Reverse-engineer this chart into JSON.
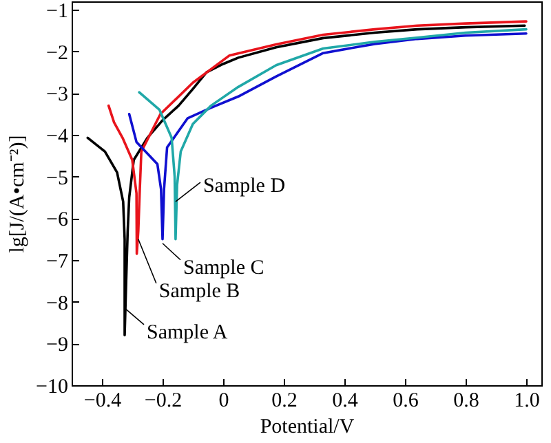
{
  "chart_data": {
    "type": "line",
    "xlabel": "Potential/V",
    "ylabel": "lg[J/(A•cm⁻²)]",
    "xlim": [
      -0.5,
      1.05
    ],
    "ylim": [
      -10,
      -0.8
    ],
    "xticks": [
      -0.4,
      -0.2,
      0,
      0.2,
      0.4,
      0.6,
      0.8,
      {
        "value": 1,
        "label": "1.0"
      }
    ],
    "yticks": [
      -10,
      -9,
      -8,
      -7,
      -6,
      -5,
      -4,
      -3,
      -2,
      -1
    ],
    "grid": false,
    "line_style": "solid",
    "marker": "none",
    "series": [
      {
        "color": "#000000",
        "x": [
          -0.447,
          -0.39,
          -0.35,
          -0.33,
          -0.325,
          -0.325,
          -0.32,
          -0.315,
          -0.31,
          -0.295,
          -0.25,
          -0.2,
          -0.147,
          -0.1,
          -0.055,
          0,
          0.05,
          0.175,
          0.33,
          0.5,
          0.64,
          0.8,
          0.995
        ],
        "values": [
          -4.07,
          -4.4,
          -4.9,
          -5.6,
          -6.5,
          -8.8,
          -7.5,
          -6.3,
          -5.5,
          -4.6,
          -4.07,
          -3.65,
          -3.3,
          -2.9,
          -2.5,
          -2.3,
          -2.15,
          -1.9,
          -1.68,
          -1.55,
          -1.47,
          -1.42,
          -1.38
        ]
      },
      {
        "color": "#e8141c",
        "x": [
          -0.378,
          -0.36,
          -0.332,
          -0.3,
          -0.286,
          -0.285,
          -0.28,
          -0.275,
          -0.27,
          -0.207,
          -0.1,
          0.02,
          0.175,
          0.33,
          0.5,
          0.64,
          0.8,
          1.0
        ],
        "values": [
          -3.3,
          -3.7,
          -4.07,
          -4.6,
          -5.4,
          -6.85,
          -6.3,
          -5.3,
          -4.4,
          -3.5,
          -2.75,
          -2.1,
          -1.83,
          -1.6,
          -1.47,
          -1.38,
          -1.33,
          -1.28
        ]
      },
      {
        "color": "#1010d0",
        "x": [
          -0.31,
          -0.286,
          -0.217,
          -0.205,
          -0.2,
          -0.195,
          -0.185,
          -0.117,
          -0.04,
          0.05,
          0.175,
          0.33,
          0.5,
          0.64,
          0.8,
          1.0
        ],
        "values": [
          -3.5,
          -4.17,
          -4.7,
          -5.3,
          -6.5,
          -5.3,
          -4.3,
          -3.6,
          -3.35,
          -3.08,
          -2.6,
          -2.04,
          -1.82,
          -1.7,
          -1.62,
          -1.57
        ]
      },
      {
        "color": "#20a8a8",
        "x": [
          -0.277,
          -0.21,
          -0.17,
          -0.16,
          -0.157,
          -0.152,
          -0.14,
          -0.1,
          -0.04,
          0.05,
          0.175,
          0.33,
          0.5,
          0.64,
          0.8,
          1.0
        ],
        "values": [
          -2.98,
          -3.4,
          -4.07,
          -5.0,
          -6.5,
          -5.2,
          -4.4,
          -3.74,
          -3.3,
          -2.85,
          -2.33,
          -1.93,
          -1.77,
          -1.67,
          -1.55,
          -1.47
        ]
      }
    ],
    "annotations": [
      {
        "text": "Sample A",
        "x": -0.325,
        "y": -8.15
      },
      {
        "text": "Sample B",
        "x": -0.28,
        "y": -6.5
      },
      {
        "text": "Sample C",
        "x": -0.2,
        "y": -6.6
      },
      {
        "text": "Sample D",
        "x": -0.157,
        "y": -5.6
      }
    ]
  }
}
